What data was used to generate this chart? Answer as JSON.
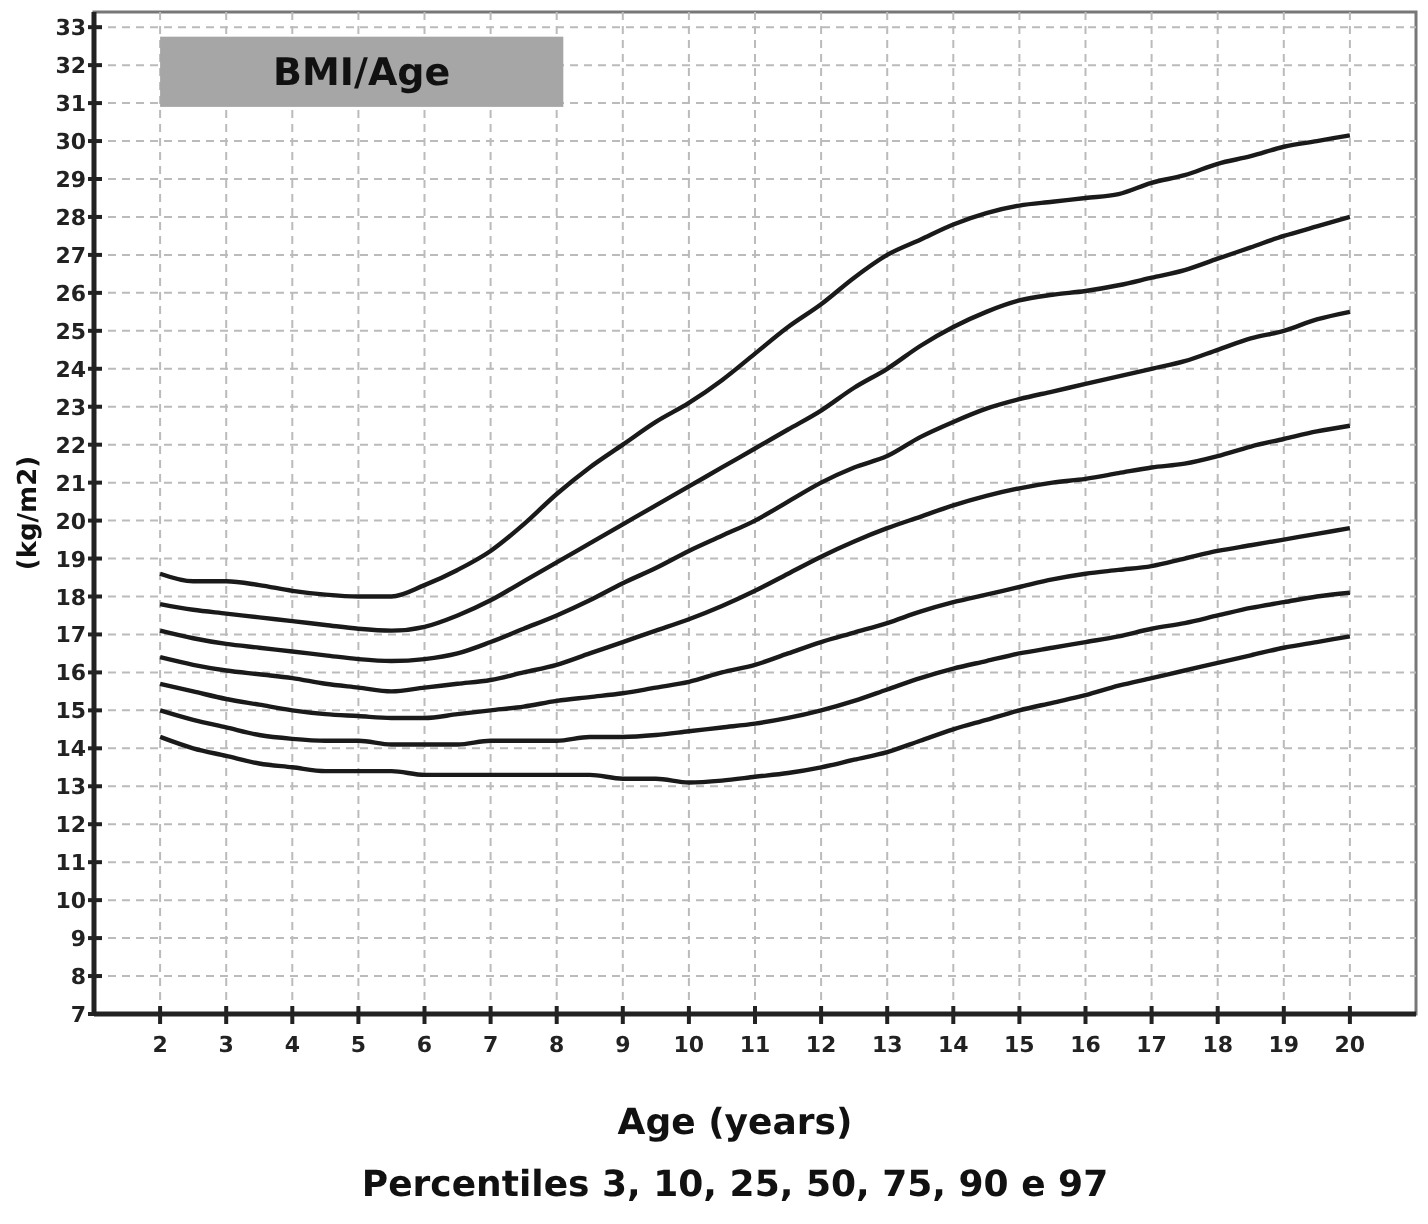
{
  "chart_data": {
    "type": "line",
    "title": "BMI/Age",
    "subtitle": "Percentiles 3, 10, 25, 50, 75, 90 e 97",
    "xlabel": "Age (years)",
    "ylabel": "(kg/m2)",
    "x": [
      2,
      2.5,
      3,
      3.5,
      4,
      4.5,
      5,
      5.5,
      6,
      6.5,
      7,
      7.5,
      8,
      8.5,
      9,
      9.5,
      10,
      10.5,
      11,
      11.5,
      12,
      12.5,
      13,
      13.5,
      14,
      14.5,
      15,
      15.5,
      16,
      16.5,
      17,
      17.5,
      18,
      18.5,
      19,
      19.5,
      20
    ],
    "series": [
      {
        "color": "#1a1a1a",
        "values": [
          18.6,
          18.4,
          18.4,
          18.3,
          18.15,
          18.05,
          18.0,
          18.0,
          18.3,
          18.7,
          19.2,
          19.9,
          20.7,
          21.4,
          22.0,
          22.6,
          23.1,
          23.7,
          24.4,
          25.1,
          25.7,
          26.4,
          27.0,
          27.4,
          27.8,
          28.1,
          28.3,
          28.4,
          28.5,
          28.6,
          28.9,
          29.1,
          29.4,
          29.6,
          29.85,
          30.0,
          30.15
        ]
      },
      {
        "color": "#1a1a1a",
        "values": [
          17.8,
          17.65,
          17.55,
          17.45,
          17.35,
          17.25,
          17.15,
          17.1,
          17.2,
          17.5,
          17.9,
          18.4,
          18.9,
          19.4,
          19.9,
          20.4,
          20.9,
          21.4,
          21.9,
          22.4,
          22.9,
          23.5,
          24.0,
          24.6,
          25.1,
          25.5,
          25.8,
          25.95,
          26.05,
          26.2,
          26.4,
          26.6,
          26.9,
          27.2,
          27.5,
          27.75,
          28.0
        ]
      },
      {
        "color": "#1a1a1a",
        "values": [
          17.1,
          16.9,
          16.75,
          16.65,
          16.55,
          16.45,
          16.35,
          16.3,
          16.35,
          16.5,
          16.8,
          17.15,
          17.5,
          17.9,
          18.35,
          18.75,
          19.2,
          19.6,
          20.0,
          20.5,
          21.0,
          21.4,
          21.7,
          22.2,
          22.6,
          22.95,
          23.2,
          23.4,
          23.6,
          23.8,
          24.0,
          24.2,
          24.5,
          24.8,
          25.0,
          25.3,
          25.5
        ]
      },
      {
        "color": "#1a1a1a",
        "values": [
          16.4,
          16.2,
          16.05,
          15.95,
          15.85,
          15.7,
          15.6,
          15.5,
          15.6,
          15.7,
          15.8,
          16.0,
          16.2,
          16.5,
          16.8,
          17.1,
          17.4,
          17.75,
          18.15,
          18.6,
          19.05,
          19.45,
          19.8,
          20.1,
          20.4,
          20.65,
          20.85,
          21.0,
          21.1,
          21.25,
          21.4,
          21.5,
          21.7,
          21.95,
          22.15,
          22.35,
          22.5
        ]
      },
      {
        "color": "#1a1a1a",
        "values": [
          15.7,
          15.5,
          15.3,
          15.15,
          15.0,
          14.9,
          14.85,
          14.8,
          14.8,
          14.9,
          15.0,
          15.1,
          15.25,
          15.35,
          15.45,
          15.6,
          15.75,
          16.0,
          16.2,
          16.5,
          16.8,
          17.05,
          17.3,
          17.6,
          17.85,
          18.05,
          18.25,
          18.45,
          18.6,
          18.7,
          18.8,
          19.0,
          19.2,
          19.35,
          19.5,
          19.65,
          19.8
        ]
      },
      {
        "color": "#1a1a1a",
        "values": [
          15.0,
          14.75,
          14.55,
          14.35,
          14.25,
          14.2,
          14.2,
          14.1,
          14.1,
          14.1,
          14.2,
          14.2,
          14.2,
          14.3,
          14.3,
          14.35,
          14.45,
          14.55,
          14.65,
          14.8,
          15.0,
          15.25,
          15.55,
          15.85,
          16.1,
          16.3,
          16.5,
          16.65,
          16.8,
          16.95,
          17.15,
          17.3,
          17.5,
          17.7,
          17.85,
          18.0,
          18.1
        ]
      },
      {
        "color": "#1a1a1a",
        "values": [
          14.3,
          14.0,
          13.8,
          13.6,
          13.5,
          13.4,
          13.4,
          13.4,
          13.3,
          13.3,
          13.3,
          13.3,
          13.3,
          13.3,
          13.2,
          13.2,
          13.1,
          13.15,
          13.25,
          13.35,
          13.5,
          13.7,
          13.9,
          14.2,
          14.5,
          14.75,
          15.0,
          15.2,
          15.4,
          15.65,
          15.85,
          16.05,
          16.25,
          16.45,
          16.65,
          16.8,
          16.95
        ]
      }
    ],
    "xlim": [
      1,
      21
    ],
    "ylim": [
      7,
      33.4
    ],
    "xticks": [
      2,
      3,
      4,
      5,
      6,
      7,
      8,
      9,
      10,
      11,
      12,
      13,
      14,
      15,
      16,
      17,
      18,
      19,
      20
    ],
    "yticks": [
      7,
      8,
      9,
      10,
      11,
      12,
      13,
      14,
      15,
      16,
      17,
      18,
      19,
      20,
      21,
      22,
      23,
      24,
      25,
      26,
      27,
      28,
      29,
      30,
      31,
      32,
      33
    ],
    "grid": true,
    "marker": "none",
    "line_style": "solid"
  }
}
